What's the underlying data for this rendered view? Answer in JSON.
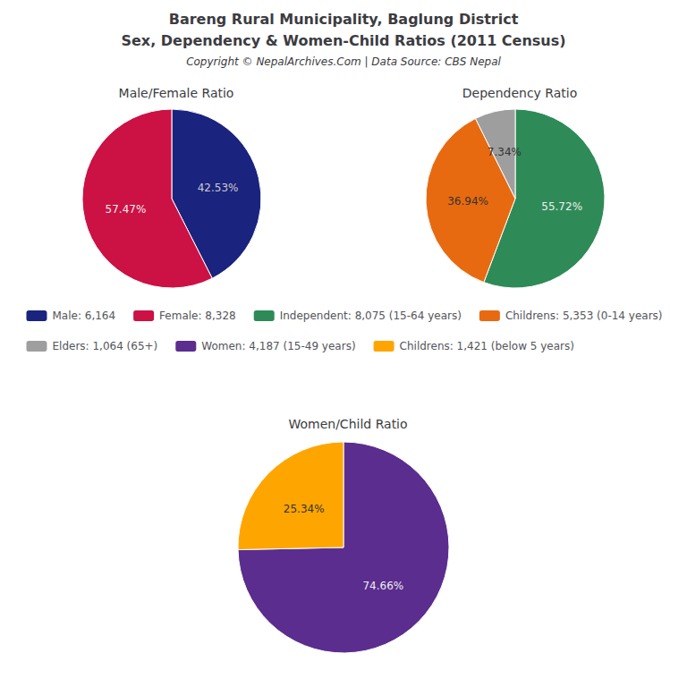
{
  "title": [
    "Bareng Rural Municipality, Baglung District",
    "Sex, Dependency & Women-Child Ratios (2011 Census)"
  ],
  "subtitle": "Copyright © NepalArchives.Com | Data Source: CBS Nepal",
  "chart_data": [
    {
      "type": "pie",
      "title": "Male/Female Ratio",
      "categories": [
        "Male: 6,164",
        "Female: 8,328"
      ],
      "values": [
        42.53,
        57.47
      ],
      "value_labels": [
        "42.53%",
        "57.47%"
      ],
      "colors": [
        "#1a237e",
        "#cc1144"
      ],
      "data_labels": true,
      "legend": "bottom"
    },
    {
      "type": "pie",
      "title": "Dependency Ratio",
      "categories": [
        "Independent: 8,075 (15-64 years)",
        "Childrens: 5,353 (0-14 years)",
        "Elders: 1,064 (65+)"
      ],
      "values": [
        55.72,
        36.94,
        7.34
      ],
      "value_labels": [
        "55.72%",
        "36.94%",
        "7.34%"
      ],
      "colors": [
        "#2e8b57",
        "#e86a10",
        "#9e9e9e"
      ],
      "data_labels": true,
      "legend": "bottom"
    },
    {
      "type": "pie",
      "title": "Women/Child Ratio",
      "categories": [
        "Women: 4,187 (15-49 years)",
        "Childrens: 1,421 (below 5 years)"
      ],
      "values": [
        74.66,
        25.34
      ],
      "value_labels": [
        "74.66%",
        "25.34%"
      ],
      "colors": [
        "#5b2d8e",
        "#ffa500"
      ],
      "data_labels": true,
      "legend": "top"
    }
  ]
}
